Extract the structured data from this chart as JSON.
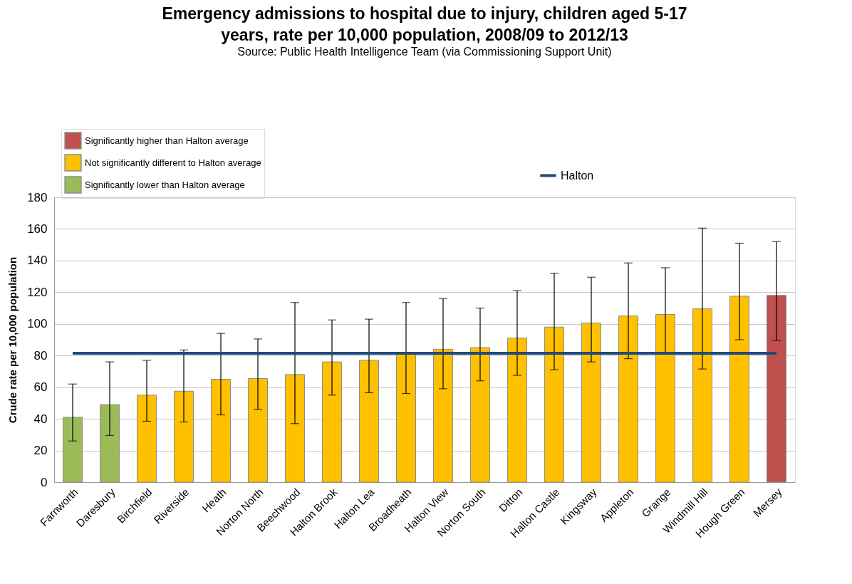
{
  "chart_data": {
    "type": "bar",
    "title": "Emergency admissions to hospital due to injury, children aged 5-17 years, rate per 10,000 population, 2008/09 to 2012/13",
    "subtitle": "Source: Public Health Intelligence Team (via Commissioning Support Unit)",
    "ylabel": "Crude rate per 10,000 population",
    "categories": [
      "Farnworth",
      "Daresbury",
      "Birchfield",
      "Riverside",
      "Heath",
      "Norton North",
      "Beechwood",
      "Halton Brook",
      "Halton Lea",
      "Broadheath",
      "Halton View",
      "Norton South",
      "Ditton",
      "Halton Castle",
      "Kingsway",
      "Appleton",
      "Grange",
      "Windmill Hill",
      "Hough Green",
      "Mersey"
    ],
    "series": [
      {
        "name": "Significantly higher than Halton average",
        "color": "#c0504d",
        "values": [
          null,
          null,
          null,
          null,
          null,
          null,
          null,
          null,
          null,
          null,
          null,
          null,
          null,
          null,
          null,
          null,
          null,
          null,
          null,
          118
        ],
        "errors": [
          null,
          null,
          null,
          null,
          null,
          null,
          null,
          null,
          null,
          null,
          null,
          null,
          null,
          null,
          null,
          null,
          null,
          null,
          null,
          [
            89.5,
            152
          ]
        ]
      },
      {
        "name": "Not significantly different to Halton average",
        "color": "#ffc000",
        "values": [
          null,
          null,
          55,
          57.5,
          65,
          65.5,
          68,
          76,
          77,
          81,
          84,
          85,
          91,
          98,
          100.5,
          105,
          106,
          109.5,
          117.5,
          null
        ],
        "errors": [
          null,
          null,
          [
            38.5,
            77
          ],
          [
            38,
            83.5
          ],
          [
            42.5,
            94
          ],
          [
            46,
            90.5
          ],
          [
            37,
            113.5
          ],
          [
            55,
            102.5
          ],
          [
            56.5,
            103
          ],
          [
            56,
            113.5
          ],
          [
            59,
            116
          ],
          [
            64,
            110
          ],
          [
            67.5,
            121
          ],
          [
            71,
            132
          ],
          [
            76,
            129.5
          ],
          [
            78,
            138.5
          ],
          [
            81,
            135.5
          ],
          [
            71.5,
            160.5
          ],
          [
            90,
            151
          ],
          null
        ]
      },
      {
        "name": "Significantly lower than Halton average",
        "color": "#9bbb59",
        "values": [
          41,
          49,
          null,
          null,
          null,
          null,
          null,
          null,
          null,
          null,
          null,
          null,
          null,
          null,
          null,
          null,
          null,
          null,
          null,
          null
        ],
        "errors": [
          [
            26,
            62
          ],
          [
            29.5,
            76
          ],
          null,
          null,
          null,
          null,
          null,
          null,
          null,
          null,
          null,
          null,
          null,
          null,
          null,
          null,
          null,
          null,
          null,
          null
        ]
      },
      {
        "name": "Halton",
        "type": "line",
        "color": "#1f497d",
        "values": [
          81.5,
          81.5,
          81.5,
          81.5,
          81.5,
          81.5,
          81.5,
          81.5,
          81.5,
          81.5,
          81.5,
          81.5,
          81.5,
          81.5,
          81.5,
          81.5,
          81.5,
          81.5,
          81.5,
          81.5
        ]
      }
    ],
    "ylim": [
      0,
      180
    ],
    "yticks": [
      0,
      20,
      40,
      60,
      80,
      100,
      120,
      140,
      160,
      180
    ],
    "grid": "y",
    "legend": "top",
    "marker": "none"
  }
}
